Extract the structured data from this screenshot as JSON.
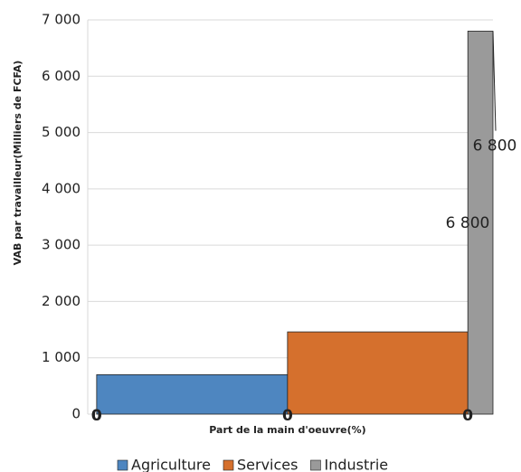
{
  "chart_data": {
    "type": "mekko",
    "y_label": "VAB par travailleur(Milliers de FCFA)",
    "x_label": "Part de la main d'oeuvre(%)",
    "xlim": [
      0,
      100
    ],
    "ylim": [
      0,
      7000
    ],
    "yticks": [
      0,
      {
        "value": 1000,
        "label": "1 000"
      },
      {
        "value": 2000,
        "label": "2 000"
      },
      {
        "value": 3000,
        "label": "3 000"
      },
      {
        "value": 4000,
        "label": "4 000"
      },
      {
        "value": 5000,
        "label": "5 000"
      },
      {
        "value": 6000,
        "label": "6 000"
      },
      {
        "value": 7000,
        "label": "7 000"
      }
    ],
    "grid": true,
    "series": [
      {
        "name": "Agriculture",
        "color": "#4e86c0",
        "values": [
          700
        ],
        "x": [
          [
            2.2,
            49.3
          ]
        ],
        "bottom_labels": [
          0,
          0
        ]
      },
      {
        "name": "Services",
        "color": "#d5702d",
        "values": [
          1460
        ],
        "x": [
          [
            49.3,
            93.8
          ]
        ],
        "bottom_labels": [
          0
        ]
      },
      {
        "name": "Industrie",
        "color": "#9a9a9a",
        "values": [
          6800
        ],
        "x": [
          [
            93.8,
            100
          ]
        ],
        "bottom_labels": [
          0
        ],
        "value_labels": [
          "6 800"
        ]
      }
    ],
    "annotations": [
      "6 800"
    ],
    "legend": "bottom"
  }
}
